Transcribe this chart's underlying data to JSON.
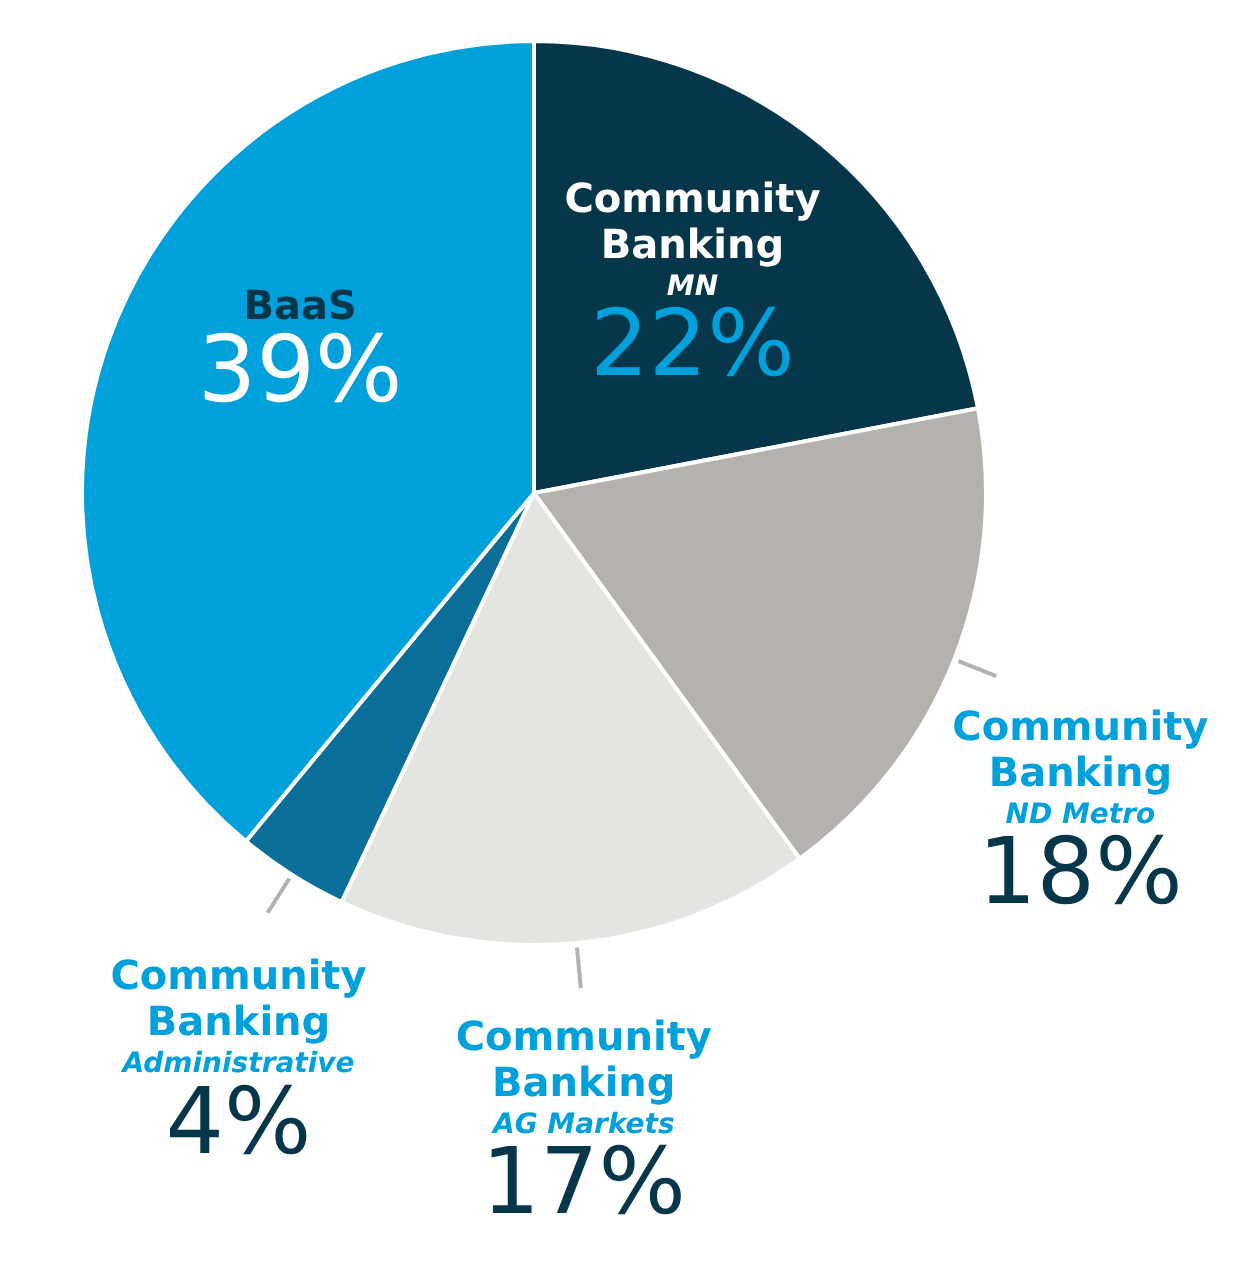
{
  "chart_data": {
    "type": "pie",
    "categories": [
      "Community Banking\nMN",
      "Community Banking\nND Metro",
      "Community Banking\nAG Markets",
      "Community Banking\nAdministrative",
      "BaaS"
    ],
    "values": [
      22,
      18,
      17,
      4,
      39
    ],
    "value_labels": [
      "22%",
      "18%",
      "17%",
      "4%",
      "39%"
    ],
    "colors": [
      "#06364a",
      "#b5b2ad",
      "#e5e5e0",
      "#0b6e99",
      "#00a0db"
    ],
    "legend": false
  }
}
